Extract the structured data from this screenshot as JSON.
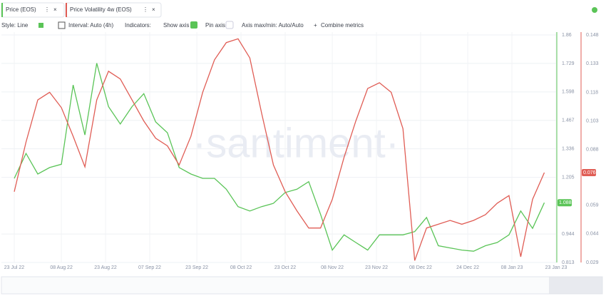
{
  "tabs": [
    "Price (EOS)",
    "Price Volatility 4w (EOS)"
  ],
  "toolbar": {
    "style": "Style: Line",
    "interval": "Interval: Auto (4h)",
    "indicators": "Indicators:",
    "show_axis": "Show axis",
    "pin_axis": "Pin axis",
    "axis_minmax": "Axis max/min: Auto/Auto",
    "combine": "Combine metrics"
  },
  "watermark": "·santiment·",
  "chart_data": {
    "type": "line",
    "grid": true,
    "x": [
      "2022-07-23",
      "2022-07-27",
      "2022-07-31",
      "2022-08-04",
      "2022-08-08",
      "2022-08-12",
      "2022-08-16",
      "2022-08-20",
      "2022-08-24",
      "2022-08-28",
      "2022-09-01",
      "2022-09-05",
      "2022-09-09",
      "2022-09-13",
      "2022-09-17",
      "2022-09-21",
      "2022-09-25",
      "2022-09-29",
      "2022-10-03",
      "2022-10-07",
      "2022-10-11",
      "2022-10-15",
      "2022-10-19",
      "2022-10-23",
      "2022-10-27",
      "2022-10-31",
      "2022-11-04",
      "2022-11-08",
      "2022-11-12",
      "2022-11-16",
      "2022-11-20",
      "2022-11-24",
      "2022-11-28",
      "2022-12-02",
      "2022-12-06",
      "2022-12-10",
      "2022-12-14",
      "2022-12-18",
      "2022-12-22",
      "2022-12-26",
      "2022-12-30",
      "2023-01-03",
      "2023-01-07",
      "2023-01-11",
      "2023-01-15",
      "2023-01-19"
    ],
    "xlim": [
      "2022-07-23",
      "2023-01-23"
    ],
    "xticks": [
      {
        "value": "2022-07-23",
        "label": "23 Jul 22"
      },
      {
        "value": "2022-08-08",
        "label": "08 Aug 22"
      },
      {
        "value": "2022-08-23",
        "label": "23 Aug 22"
      },
      {
        "value": "2022-09-07",
        "label": "07 Sep 22"
      },
      {
        "value": "2022-09-23",
        "label": "23 Sep 22"
      },
      {
        "value": "2022-10-08",
        "label": "08 Oct 22"
      },
      {
        "value": "2022-10-23",
        "label": "23 Oct 22"
      },
      {
        "value": "2022-11-08",
        "label": "08 Nov 22"
      },
      {
        "value": "2022-11-23",
        "label": "23 Nov 22"
      },
      {
        "value": "2022-12-08",
        "label": "08 Dec 22"
      },
      {
        "value": "2022-12-24",
        "label": "24 Dec 22"
      },
      {
        "value": "2023-01-08",
        "label": "08 Jan 23"
      },
      {
        "value": "2023-01-23",
        "label": "23 Jan 23"
      }
    ],
    "ylim": [
      0.813,
      1.86
    ],
    "yticks": [
      0.813,
      0.944,
      1.205,
      1.336,
      1.467,
      1.598,
      1.729,
      1.86
    ],
    "y2lim": [
      0.029,
      0.148
    ],
    "y2ticks": [
      0.029,
      0.044,
      0.059,
      0.088,
      0.103,
      0.118,
      0.133,
      0.148
    ],
    "series": [
      {
        "name": "Price (EOS)",
        "color": "#5ac457",
        "values": [
          1.2,
          1.315,
          1.22,
          1.25,
          1.265,
          1.63,
          1.4,
          1.73,
          1.53,
          1.45,
          1.53,
          1.59,
          1.46,
          1.41,
          1.25,
          1.22,
          1.2,
          1.2,
          1.15,
          1.07,
          1.05,
          1.07,
          1.085,
          1.135,
          1.15,
          1.185,
          1.035,
          0.87,
          0.94,
          0.905,
          0.87,
          0.94,
          0.94,
          0.94,
          0.955,
          1.02,
          0.89,
          0.88,
          0.87,
          0.865,
          0.89,
          0.905,
          0.94,
          1.05,
          0.97,
          1.088
        ]
      },
      {
        "name": "Price Volatility 4w (EOS)",
        "color": "#e05d55",
        "axis": "y2",
        "values": [
          0.066,
          0.092,
          0.114,
          0.118,
          0.11,
          0.095,
          0.079,
          0.114,
          0.129,
          0.125,
          0.114,
          0.103,
          0.094,
          0.09,
          0.08,
          0.095,
          0.118,
          0.135,
          0.144,
          0.146,
          0.136,
          0.107,
          0.08,
          0.066,
          0.056,
          0.047,
          0.047,
          0.062,
          0.084,
          0.103,
          0.12,
          0.123,
          0.118,
          0.099,
          0.03,
          0.047,
          0.049,
          0.051,
          0.049,
          0.051,
          0.054,
          0.06,
          0.064,
          0.032,
          0.062,
          0.076
        ]
      }
    ]
  }
}
